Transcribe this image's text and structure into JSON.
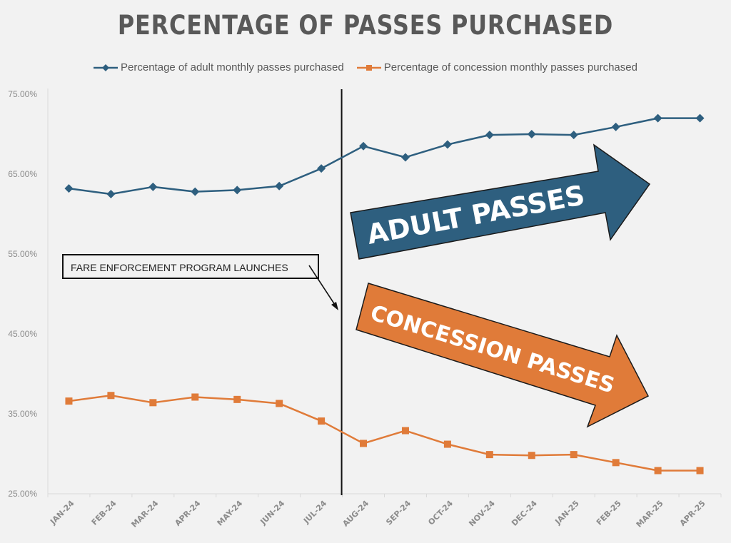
{
  "chart_data": {
    "type": "line",
    "title": "PERCENTAGE OF PASSES PURCHASED",
    "xlabel": "",
    "ylabel": "",
    "ylim": [
      25,
      75
    ],
    "yticks": [
      25,
      35,
      45,
      55,
      65,
      75
    ],
    "ytick_labels": [
      "25.00%",
      "35.00%",
      "45.00%",
      "55.00%",
      "65.00%",
      "75.00%"
    ],
    "grid": false,
    "legend_position": "top-center",
    "categories": [
      "JAN-24",
      "FEB-24",
      "MAR-24",
      "APR-24",
      "MAY-24",
      "JUN-24",
      "JUL-24",
      "AUG-24",
      "SEP-24",
      "OCT-24",
      "NOV-24",
      "DEC-24",
      "JAN-25",
      "FEB-25",
      "MAR-25",
      "APR-25"
    ],
    "series": [
      {
        "name": "Percentage of adult monthly passes purchased",
        "color": "#2e5f7f",
        "marker": "diamond",
        "values": [
          63.2,
          62.5,
          63.4,
          62.8,
          63.0,
          63.5,
          65.7,
          68.5,
          67.1,
          68.7,
          69.9,
          70.0,
          69.9,
          70.9,
          72.0,
          72.0
        ]
      },
      {
        "name": "Percentage of concession monthly passes purchased",
        "color": "#e07b39",
        "marker": "square",
        "values": [
          36.6,
          37.3,
          36.4,
          37.1,
          36.8,
          36.3,
          34.1,
          31.3,
          32.9,
          31.2,
          29.9,
          29.8,
          29.9,
          28.9,
          27.9,
          27.9
        ]
      }
    ],
    "annotations": {
      "event_line_between": [
        "JUL-24",
        "AUG-24"
      ],
      "event_label": "FARE ENFORCEMENT PROGRAM LAUNCHES",
      "adult_arrow_label": "ADULT PASSES",
      "adult_arrow_color": "#2e5f7f",
      "concession_arrow_label": "CONCESSION PASSES",
      "concession_arrow_color": "#e07b39"
    }
  }
}
